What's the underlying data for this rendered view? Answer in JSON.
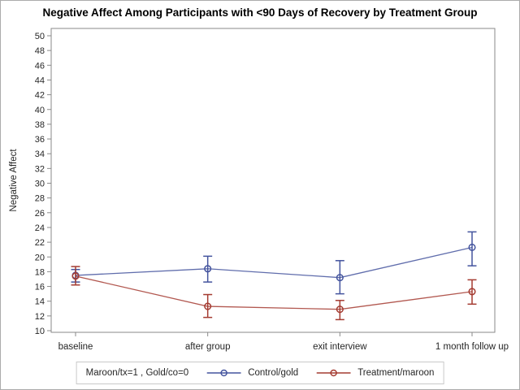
{
  "chart_data": {
    "type": "line",
    "title": "Negative Affect Among Participants with <90 Days of Recovery by Treatment Group",
    "ylabel": "Negative Affect",
    "xlabel": "",
    "categories": [
      "baseline",
      "after group",
      "exit interview",
      "1 month follow up"
    ],
    "ylim": [
      10,
      50
    ],
    "y_tick_step": 2,
    "grid": false,
    "marker": "open-circle",
    "error_bars": true,
    "legend": {
      "position": "bottom",
      "title": "Maroon/tx=1 , Gold/co=0"
    },
    "series": [
      {
        "name": "Control/gold",
        "color": "#44549E",
        "values": [
          17.5,
          18.4,
          17.2,
          21.3
        ],
        "err_low": [
          16.6,
          16.6,
          15.0,
          18.8
        ],
        "err_high": [
          18.3,
          20.1,
          19.5,
          23.4
        ]
      },
      {
        "name": "Treatment/maroon",
        "color": "#A43B31",
        "values": [
          17.4,
          13.3,
          12.9,
          15.3
        ],
        "err_low": [
          16.2,
          11.8,
          11.5,
          13.6
        ],
        "err_high": [
          18.7,
          14.9,
          14.1,
          16.9
        ]
      }
    ],
    "axis_color": "#8A8A8A",
    "text_color": "#262626"
  }
}
